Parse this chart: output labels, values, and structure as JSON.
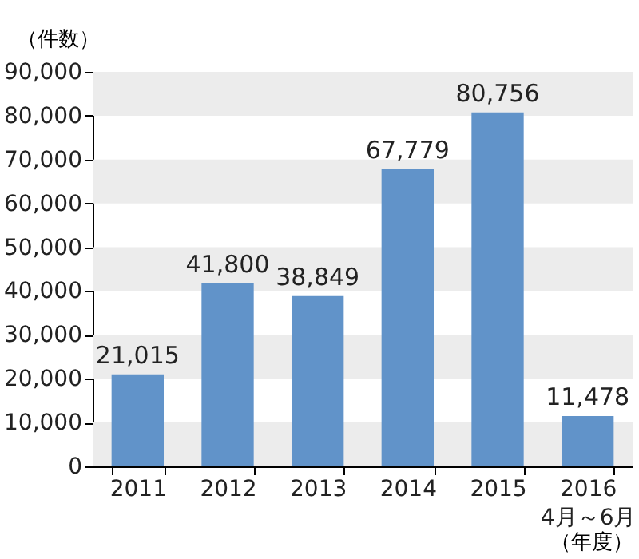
{
  "chart_data": {
    "type": "bar",
    "ylabel": "（件数）",
    "xlabel": "（年度）",
    "categories": [
      "2011",
      "2012",
      "2013",
      "2014",
      "2015",
      "2016\n4月～6月"
    ],
    "values": [
      21015,
      41800,
      38849,
      67779,
      80756,
      11478
    ],
    "value_labels": [
      "21,015",
      "41,800",
      "38,849",
      "67,779",
      "80,756",
      "11,478"
    ],
    "color": "#6193c9",
    "ylim": [
      0,
      90000
    ],
    "yticks": [
      0,
      {
        "value": 10000,
        "label": "10,000"
      },
      {
        "value": 20000,
        "label": "20,000"
      },
      {
        "value": 30000,
        "label": "30,000"
      },
      {
        "value": 40000,
        "label": "40,000"
      },
      {
        "value": 50000,
        "label": "50,000"
      },
      {
        "value": 60000,
        "label": "60,000"
      },
      {
        "value": 70000,
        "label": "70,000"
      },
      {
        "value": 80000,
        "label": "80,000"
      },
      {
        "value": 90000,
        "label": "90,000"
      }
    ],
    "bands": [
      {
        "axis": "y",
        "from": 0,
        "to": 10000,
        "color": "#ececec"
      },
      {
        "axis": "y",
        "from": 20000,
        "to": 30000,
        "color": "#ececec"
      },
      {
        "axis": "y",
        "from": 40000,
        "to": 50000,
        "color": "#ececec"
      },
      {
        "axis": "y",
        "from": 60000,
        "to": 70000,
        "color": "#ececec"
      },
      {
        "axis": "y",
        "from": 80000,
        "to": 90000,
        "color": "#ececec"
      }
    ],
    "grid": false
  }
}
